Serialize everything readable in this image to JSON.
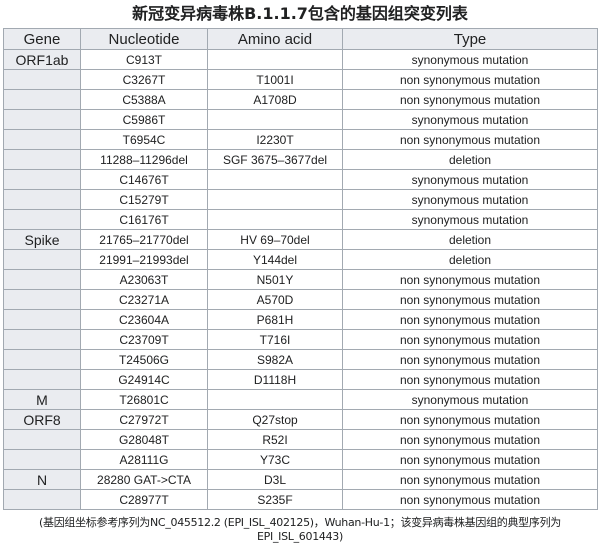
{
  "title": "新冠变异病毒株B.1.1.7包含的基因组突变列表",
  "headers": [
    "Gene",
    "Nucleotide",
    "Amino acid",
    "Type"
  ],
  "rows": [
    [
      "ORF1ab",
      "C913T",
      "",
      "synonymous mutation"
    ],
    [
      "",
      "C3267T",
      "T1001I",
      "non synonymous mutation"
    ],
    [
      "",
      "C5388A",
      "A1708D",
      "non synonymous mutation"
    ],
    [
      "",
      "C5986T",
      "",
      "synonymous mutation"
    ],
    [
      "",
      "T6954C",
      "I2230T",
      "non synonymous mutation"
    ],
    [
      "",
      "11288–11296del",
      "SGF 3675–3677del",
      "deletion"
    ],
    [
      "",
      "C14676T",
      "",
      "synonymous mutation"
    ],
    [
      "",
      "C15279T",
      "",
      "synonymous mutation"
    ],
    [
      "",
      "C16176T",
      "",
      "synonymous mutation"
    ],
    [
      "Spike",
      "21765–21770del",
      "HV 69–70del",
      "deletion"
    ],
    [
      "",
      "21991–21993del",
      "Y144del",
      "deletion"
    ],
    [
      "",
      "A23063T",
      "N501Y",
      "non synonymous mutation"
    ],
    [
      "",
      "C23271A",
      "A570D",
      "non synonymous mutation"
    ],
    [
      "",
      "C23604A",
      "P681H",
      "non synonymous mutation"
    ],
    [
      "",
      "C23709T",
      "T716I",
      "non synonymous mutation"
    ],
    [
      "",
      "T24506G",
      "S982A",
      "non synonymous mutation"
    ],
    [
      "",
      "G24914C",
      "D1118H",
      "non synonymous mutation"
    ],
    [
      "M",
      "T26801C",
      "",
      "synonymous mutation"
    ],
    [
      "ORF8",
      "C27972T",
      "Q27stop",
      "non synonymous mutation"
    ],
    [
      "",
      "G28048T",
      "R52I",
      "non synonymous mutation"
    ],
    [
      "",
      "A28111G",
      "Y73C",
      "non synonymous mutation"
    ],
    [
      "N",
      "28280 GAT->CTA",
      "D3L",
      "non synonymous mutation"
    ],
    [
      "",
      "C28977T",
      "S235F",
      "non synonymous mutation"
    ]
  ],
  "caption": "(基因组坐标参考序列为NC_045512.2 (EPI_ISL_402125)，Wuhan-Hu-1；该变异病毒株基因组的典型序列为EPI_ISL_601443)"
}
